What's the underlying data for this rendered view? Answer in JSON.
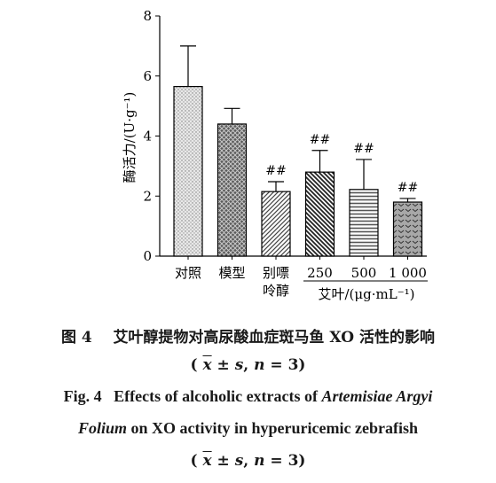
{
  "chart_data": {
    "type": "bar",
    "ylabel": "酶活力/(U·g⁻¹)",
    "ylim": [
      0,
      8
    ],
    "yticks": [
      "0",
      "2",
      "4",
      "6",
      "8"
    ],
    "categories": [
      {
        "label": [
          "对照"
        ],
        "value": 5.65,
        "error": 1.35,
        "annotation": "",
        "pattern": "dots"
      },
      {
        "label": [
          "模型"
        ],
        "value": 4.4,
        "error": 0.52,
        "annotation": "",
        "pattern": "crosshatch"
      },
      {
        "label": [
          "别嘌",
          "呤醇"
        ],
        "value": 2.15,
        "error": 0.33,
        "annotation": "##",
        "pattern": "diag-right"
      },
      {
        "label": [
          "250"
        ],
        "value": 2.8,
        "error": 0.72,
        "annotation": "##",
        "pattern": "diag-left"
      },
      {
        "label": [
          "500"
        ],
        "value": 2.22,
        "error": 1.0,
        "annotation": "##",
        "pattern": "horizontal"
      },
      {
        "label": [
          "1 000"
        ],
        "value": 1.8,
        "error": 0.12,
        "annotation": "##",
        "pattern": "chevrons"
      }
    ],
    "group_label": "艾叶/(μg·mL⁻¹)",
    "grid": false,
    "legend": "none"
  },
  "caption": {
    "cn_prefix": "图 4",
    "cn_text": "艾叶醇提物对高尿酸血症斑马鱼 XO 活性的影响",
    "stat_open": "(",
    "stat_x": "x",
    "stat_pm": " ± ",
    "stat_s": "s",
    "stat_comma": ", ",
    "stat_n": "n",
    "stat_eq": " = 3)",
    "en_prefix": "Fig. 4",
    "en_text1": "Effects of alcoholic extracts of",
    "en_italic1": "Artemisiae Argyi",
    "en_italic2": "Folium",
    "en_text2": "on XO activity in hyperuricemic zebrafish"
  }
}
